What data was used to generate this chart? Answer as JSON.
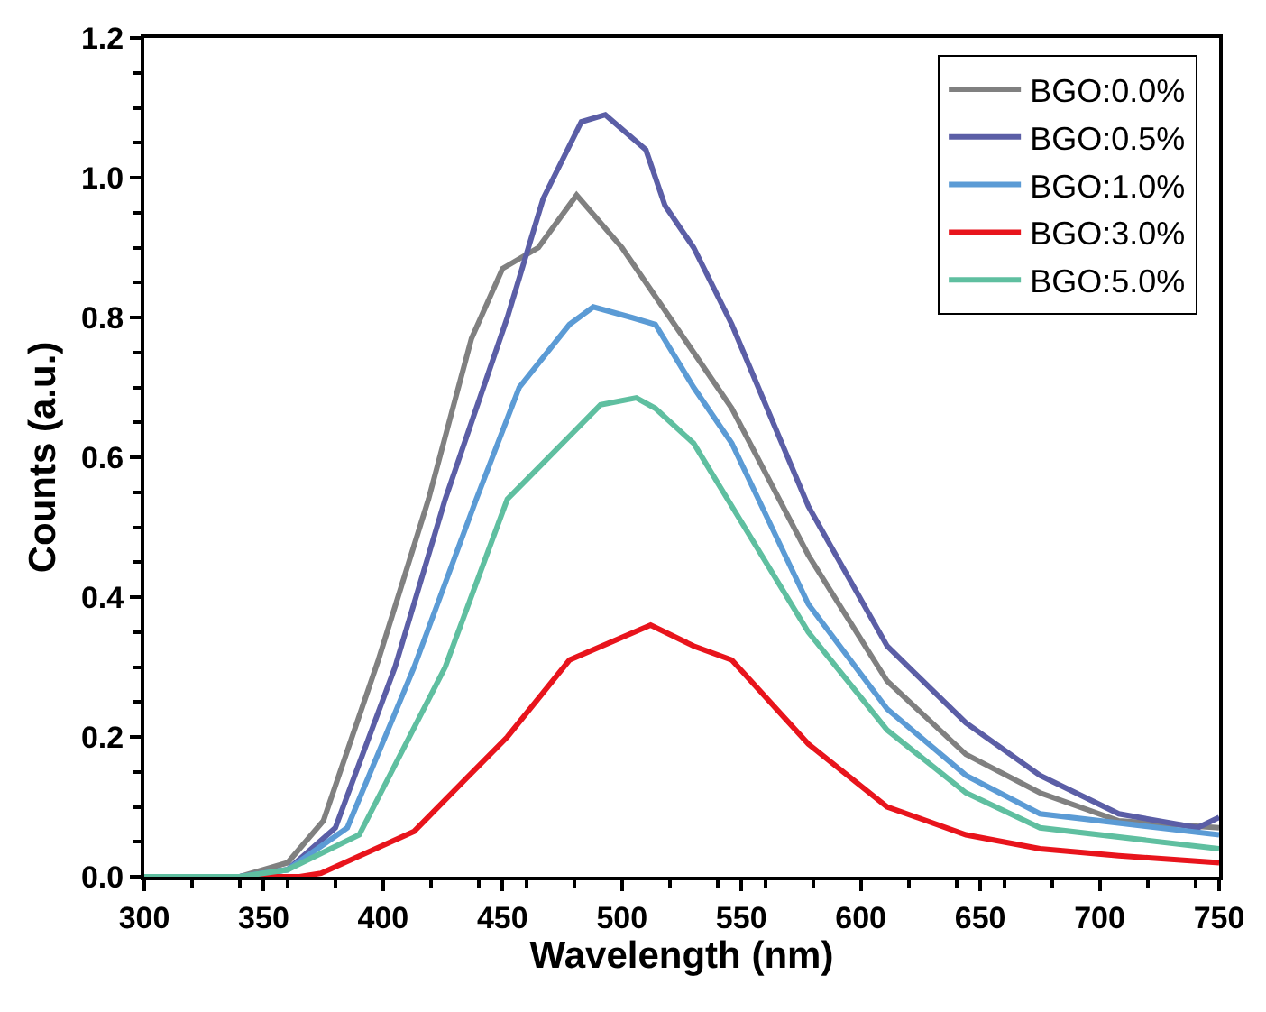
{
  "chart_data": {
    "type": "line",
    "xlabel": "Wavelength (nm)",
    "ylabel": "Counts (a.u.)",
    "xlim": [
      300,
      750
    ],
    "ylim": [
      0,
      1.2
    ],
    "xticks": [
      300,
      350,
      400,
      450,
      500,
      550,
      600,
      650,
      700,
      750
    ],
    "yticks": [
      {
        "value": 0,
        "label": "0.0"
      },
      {
        "value": 0.2,
        "label": "0.2"
      },
      {
        "value": 0.4,
        "label": "0.4"
      },
      {
        "value": 0.6,
        "label": "0.6"
      },
      {
        "value": 0.8,
        "label": "0.8"
      },
      {
        "value": 1.0,
        "label": "1.0"
      },
      {
        "value": 1.2,
        "label": "1.2"
      }
    ],
    "legend": "top right",
    "marker": "none",
    "line_style": "solid",
    "series": [
      {
        "name": "BGO:0.0%",
        "color": "#808080",
        "x": [
          300,
          340,
          360,
          375,
          398,
          419,
          437,
          450,
          465,
          481,
          500,
          514,
          530,
          546,
          578,
          611,
          644,
          675,
          708,
          750
        ],
        "values": [
          0.0,
          0.0,
          0.02,
          0.08,
          0.31,
          0.54,
          0.77,
          0.87,
          0.9,
          0.975,
          0.9,
          0.83,
          0.75,
          0.67,
          0.46,
          0.28,
          0.175,
          0.12,
          0.08,
          0.07
        ]
      },
      {
        "name": "BGO:0.5%",
        "color": "#5b5ea6",
        "x": [
          300,
          340,
          360,
          380,
          405,
          426,
          452,
          467,
          483,
          493,
          510,
          518,
          530,
          546,
          578,
          611,
          644,
          675,
          708,
          741,
          750
        ],
        "values": [
          0.0,
          0.0,
          0.01,
          0.07,
          0.3,
          0.54,
          0.8,
          0.97,
          1.08,
          1.09,
          1.04,
          0.96,
          0.9,
          0.79,
          0.53,
          0.33,
          0.22,
          0.145,
          0.09,
          0.07,
          0.085
        ]
      },
      {
        "name": "BGO:1.0%",
        "color": "#5b9bd5",
        "x": [
          300,
          340,
          360,
          385,
          413,
          439,
          457,
          478,
          488,
          504,
          514,
          530,
          546,
          578,
          611,
          644,
          675,
          750
        ],
        "values": [
          0.0,
          0.0,
          0.01,
          0.07,
          0.3,
          0.54,
          0.7,
          0.79,
          0.815,
          0.8,
          0.79,
          0.7,
          0.62,
          0.39,
          0.24,
          0.145,
          0.09,
          0.06
        ]
      },
      {
        "name": "BGO:3.0%",
        "color": "#e8141c",
        "x": [
          300,
          340,
          365,
          374,
          413,
          452,
          478,
          512,
          530,
          546,
          578,
          611,
          644,
          675,
          708,
          750
        ],
        "values": [
          0.0,
          0.0,
          0.0,
          0.005,
          0.065,
          0.2,
          0.31,
          0.36,
          0.33,
          0.31,
          0.19,
          0.1,
          0.06,
          0.04,
          0.03,
          0.02
        ]
      },
      {
        "name": "BGO:5.0%",
        "color": "#5fbfa0",
        "x": [
          300,
          340,
          360,
          390,
          426,
          452,
          478,
          491,
          506,
          514,
          530,
          546,
          578,
          611,
          644,
          675,
          750
        ],
        "values": [
          0.0,
          0.0,
          0.01,
          0.06,
          0.3,
          0.54,
          0.63,
          0.675,
          0.685,
          0.67,
          0.62,
          0.53,
          0.35,
          0.21,
          0.12,
          0.07,
          0.04
        ]
      }
    ]
  }
}
